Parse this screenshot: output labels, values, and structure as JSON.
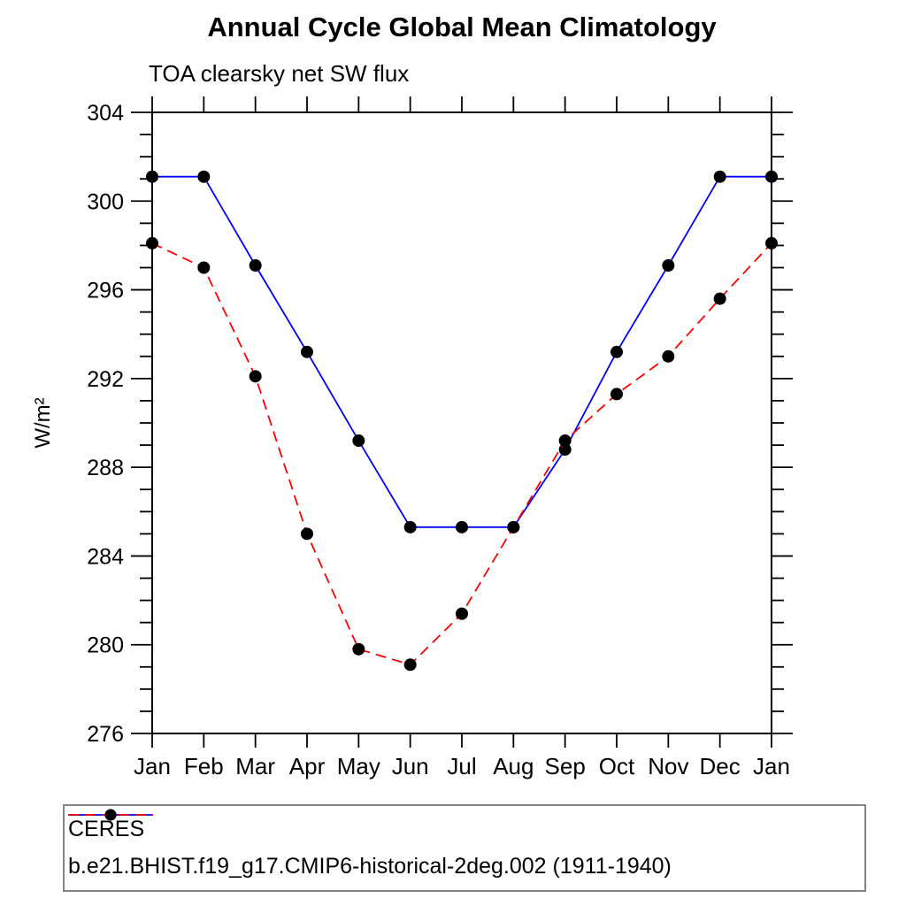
{
  "chart_data": {
    "type": "line",
    "title": "Annual Cycle Global Mean Climatology",
    "subtitle": "TOA clearsky net SW flux",
    "xlabel": "",
    "ylabel": "W/m²",
    "categories": [
      "Jan",
      "Feb",
      "Mar",
      "Apr",
      "May",
      "Jun",
      "Jul",
      "Aug",
      "Sep",
      "Oct",
      "Nov",
      "Dec",
      "Jan"
    ],
    "ylim": [
      276,
      304
    ],
    "y_major_ticks": [
      276,
      280,
      284,
      288,
      292,
      296,
      300,
      304
    ],
    "y_minor_step": 1,
    "grid": false,
    "legend_position": "bottom",
    "series": [
      {
        "name": "CERES",
        "color": "#0000ff",
        "line_style": "solid",
        "marker": "circle",
        "marker_color": "#000000",
        "values": [
          301.1,
          301.1,
          297.1,
          293.2,
          289.2,
          285.3,
          285.3,
          285.3,
          288.8,
          293.2,
          297.1,
          301.1,
          301.1
        ]
      },
      {
        "name": "b.e21.BHIST.f19_g17.CMIP6-historical-2deg.002 (1911-1940)",
        "color": "#ff0000",
        "line_style": "dashed",
        "marker": "circle",
        "marker_color": "#000000",
        "values": [
          298.1,
          297.0,
          292.1,
          285.0,
          279.8,
          279.1,
          281.4,
          285.3,
          289.2,
          291.3,
          293.0,
          295.6,
          298.1
        ]
      }
    ]
  }
}
